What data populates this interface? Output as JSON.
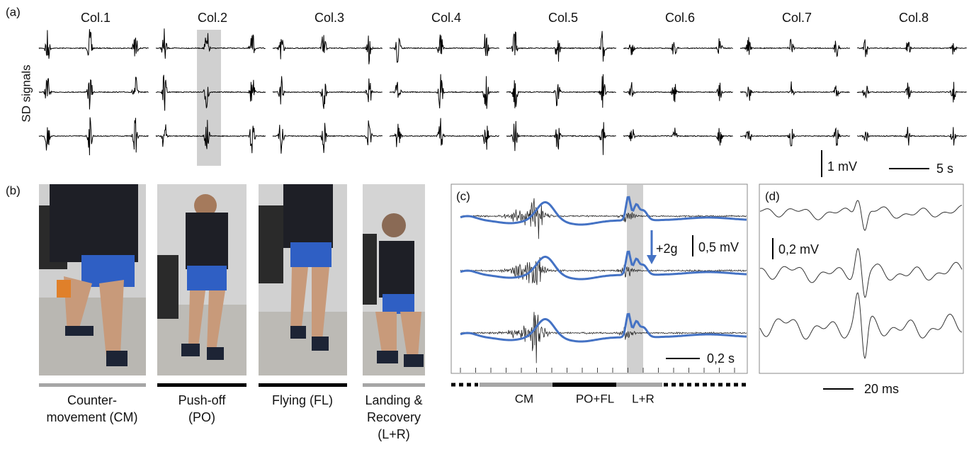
{
  "panels": {
    "a": "(a)",
    "b": "(b)",
    "c": "(c)",
    "d": "(d)"
  },
  "signals": {
    "columns": [
      "Col.1",
      "Col.2",
      "Col.3",
      "Col.4",
      "Col.5",
      "Col.6",
      "Col.7",
      "Col.8"
    ],
    "ylabel": "SD signals",
    "amp_scale": "1 mV",
    "time_scale": "5 s"
  },
  "phases": [
    {
      "lines": [
        "Counter-",
        "movement (CM)"
      ]
    },
    {
      "lines": [
        "Push-off",
        "(PO)"
      ]
    },
    {
      "lines": [
        "Flying (FL)"
      ]
    },
    {
      "lines": [
        "Landing &",
        "Recovery",
        "(L+R)"
      ]
    }
  ],
  "zoom": {
    "acc_scale": "+2g",
    "amp_scale": "0,5 mV",
    "time_scale": "0,2 s",
    "segments": [
      "CM",
      "PO+FL",
      "L+R"
    ]
  },
  "muap": {
    "amp_scale": "0,2 mV",
    "time_scale": "20 ms"
  }
}
